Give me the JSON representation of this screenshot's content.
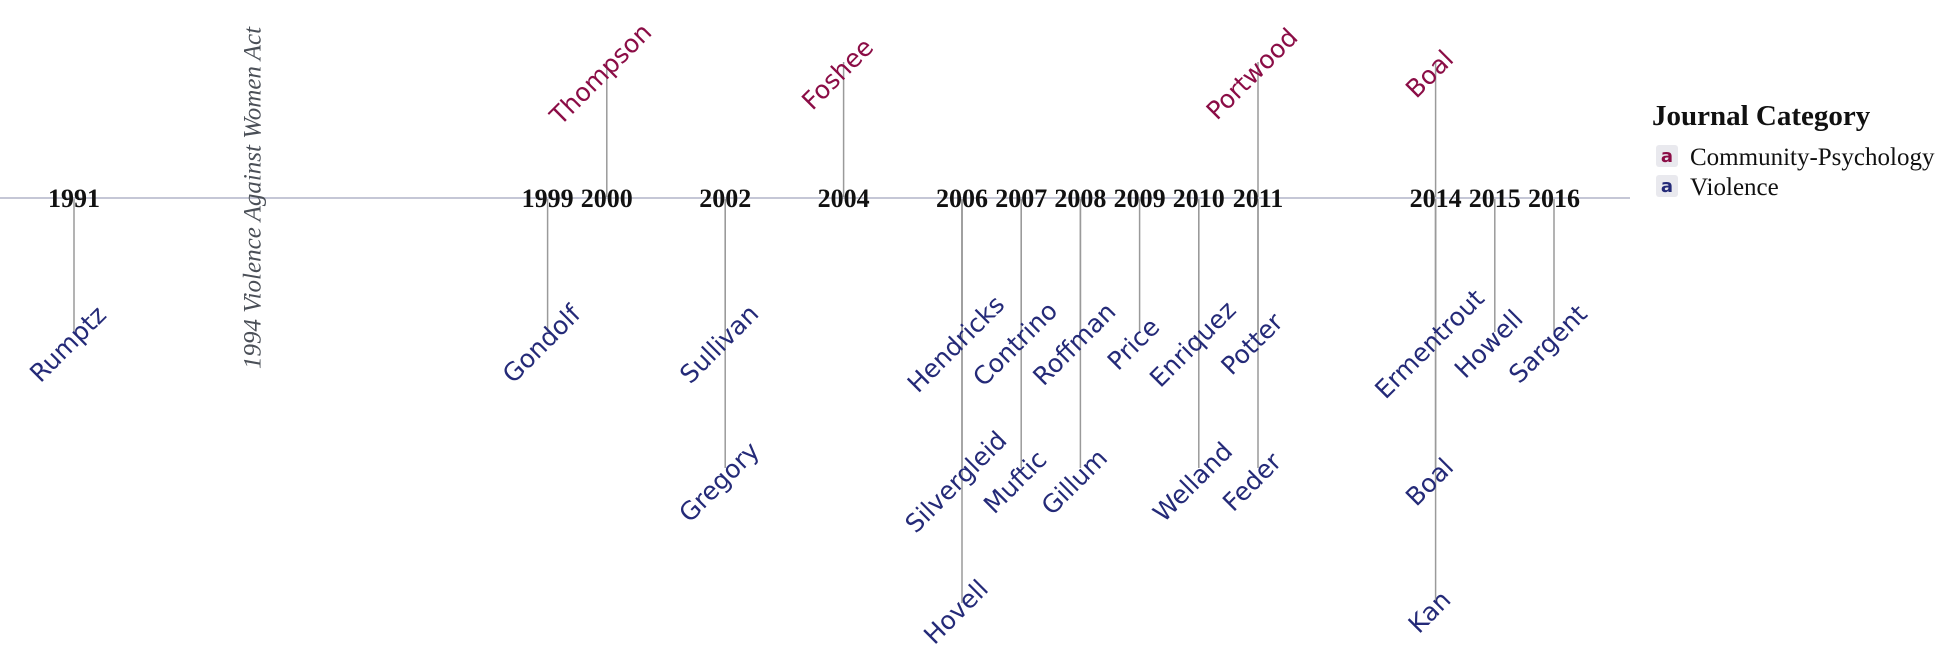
{
  "chart_data": {
    "type": "timeline",
    "x_range": [
      1990,
      2017
    ],
    "years": [
      1991,
      1999,
      2000,
      2002,
      2004,
      2006,
      2007,
      2008,
      2009,
      2010,
      2011,
      2014,
      2015,
      2016
    ],
    "events": [
      {
        "year": 1994,
        "label": "1994 Violence Against Women Act"
      }
    ],
    "series": [
      {
        "name": "Community-Psychology",
        "color": "#8b0d46",
        "points": [
          {
            "year": 2000,
            "label": "Thompson",
            "level": 1
          },
          {
            "year": 2004,
            "label": "Foshee",
            "level": 1
          },
          {
            "year": 2011,
            "label": "Portwood",
            "level": 1
          },
          {
            "year": 2014,
            "label": "Boal",
            "level": 1
          }
        ]
      },
      {
        "name": "Violence",
        "color": "#242a78",
        "points": [
          {
            "year": 1991,
            "label": "Rumptz",
            "level": -1
          },
          {
            "year": 1999,
            "label": "Gondolf",
            "level": -1
          },
          {
            "year": 2002,
            "label": "Sullivan",
            "level": -1
          },
          {
            "year": 2002,
            "label": "Gregory",
            "level": -2
          },
          {
            "year": 2006,
            "label": "Hendricks",
            "level": -1
          },
          {
            "year": 2006,
            "label": "Silvergleid",
            "level": -2
          },
          {
            "year": 2006,
            "label": "Hovell",
            "level": -3
          },
          {
            "year": 2007,
            "label": "Contrino",
            "level": -1
          },
          {
            "year": 2007,
            "label": "Muftic",
            "level": -2
          },
          {
            "year": 2008,
            "label": "Roffman",
            "level": -1
          },
          {
            "year": 2008,
            "label": "Gillum",
            "level": -2
          },
          {
            "year": 2009,
            "label": "Price",
            "level": -1
          },
          {
            "year": 2010,
            "label": "Enriquez",
            "level": -1
          },
          {
            "year": 2010,
            "label": "Welland",
            "level": -2
          },
          {
            "year": 2011,
            "label": "Potter",
            "level": -1
          },
          {
            "year": 2011,
            "label": "Feder",
            "level": -2
          },
          {
            "year": 2014,
            "label": "Ermentrout",
            "level": -1
          },
          {
            "year": 2014,
            "label": "Boal",
            "level": -2
          },
          {
            "year": 2014,
            "label": "Kan",
            "level": -3
          },
          {
            "year": 2015,
            "label": "Howell",
            "level": -1
          },
          {
            "year": 2016,
            "label": "Sargent",
            "level": -1
          }
        ]
      }
    ],
    "legend": {
      "title": "Journal Category",
      "placement": "right",
      "glyph": "a"
    },
    "axis_color": "#c5c7d6",
    "stem_color": "#9a9a9a"
  }
}
